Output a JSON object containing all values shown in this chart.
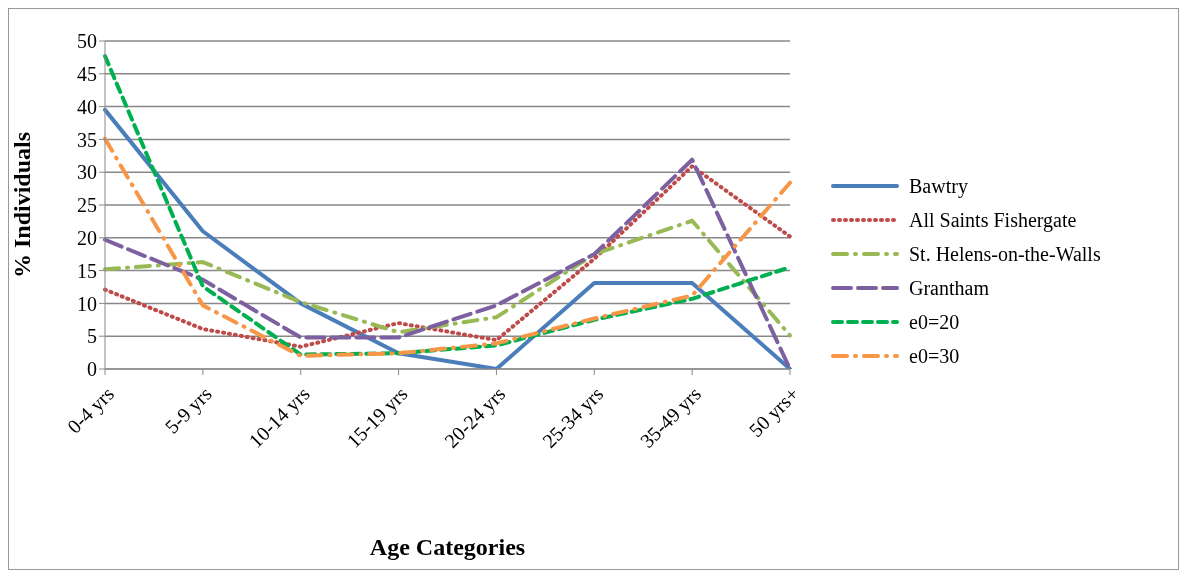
{
  "chart_data": {
    "type": "line",
    "xlabel": "Age Categories",
    "ylabel": "% Individuals",
    "categories": [
      "0-4 yrs",
      "5-9 yrs",
      "10-14 yrs",
      "15-19 yrs",
      "20-24 yrs",
      "25-34 yrs",
      "35-49 yrs",
      "50 yrs+"
    ],
    "series": [
      {
        "name": "Bawtry",
        "color": "#4a7ebb",
        "line_style": "solid",
        "values": [
          39.5,
          21,
          10,
          2.4,
          0,
          13.1,
          13.1,
          0
        ]
      },
      {
        "name": "All Saints Fishergate",
        "color": "#be4b48",
        "line_style": "dotted",
        "values": [
          12.1,
          6.1,
          3.4,
          7,
          4.4,
          16.8,
          30.9,
          20.2
        ]
      },
      {
        "name": "St. Helens-on-the-Walls",
        "color": "#98b954",
        "line_style": "dashed",
        "values": [
          15.2,
          16.3,
          10.2,
          5.6,
          7.9,
          17.5,
          22.6,
          5.1
        ]
      },
      {
        "name": "Grantham",
        "color": "#7d60a0",
        "line_style": "dashed",
        "values": [
          19.7,
          13.6,
          4.8,
          4.8,
          9.7,
          17.5,
          31.9,
          0
        ]
      },
      {
        "name": "e0=20",
        "color": "#00b050",
        "line_style": "dashed",
        "values": [
          47.7,
          12.6,
          2.2,
          2.4,
          3.6,
          7.5,
          10.7,
          15.5
        ]
      },
      {
        "name": "e0=30",
        "color": "#f79646",
        "line_style": "dashed",
        "values": [
          35.1,
          9.7,
          2,
          2.4,
          3.9,
          7.7,
          11.2,
          28.4
        ]
      }
    ],
    "ylim": [
      0,
      50
    ],
    "yticks": [
      0,
      5,
      10,
      15,
      20,
      25,
      30,
      35,
      40,
      45,
      50
    ],
    "grid": "y",
    "legend": "right",
    "marker": "none"
  }
}
